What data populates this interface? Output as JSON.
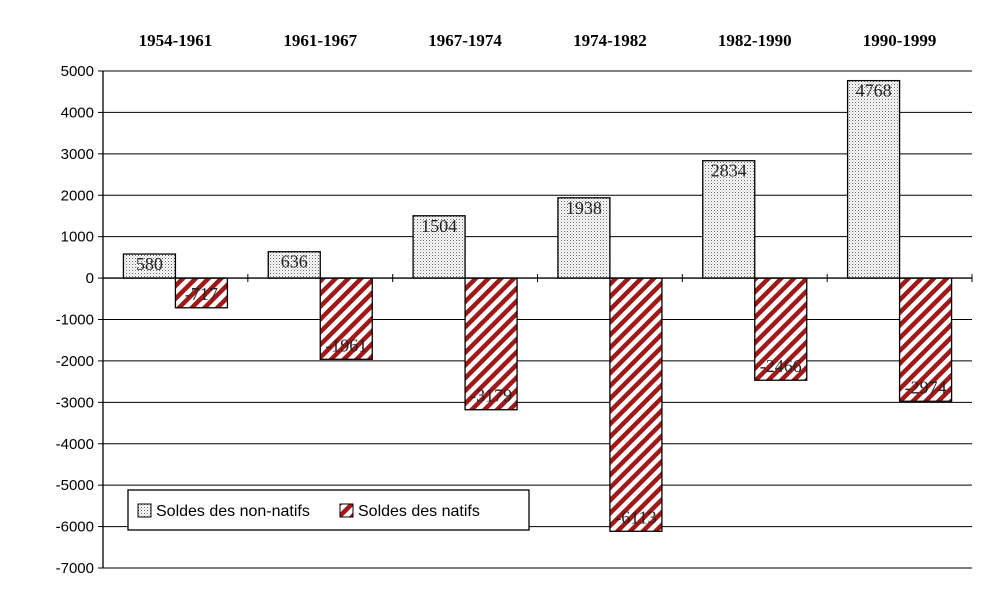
{
  "chart_data": {
    "type": "bar",
    "categories": [
      "1954-1961",
      "1961-1967",
      "1967-1974",
      "1974-1982",
      "1982-1990",
      "1990-1999"
    ],
    "series": [
      {
        "name": "Soldes des non-natifs",
        "values": [
          580,
          636,
          1504,
          1938,
          2834,
          4768
        ],
        "labels": [
          "580",
          "636",
          "1504",
          "1938",
          "2834",
          "4768"
        ],
        "color": "#ffffff",
        "pattern": "dots"
      },
      {
        "name": "Soldes des natifs",
        "values": [
          -717,
          -1961,
          -3179,
          -6113,
          -2466,
          -2974
        ],
        "labels": [
          "-717",
          "-1961",
          "-3179",
          "-6113",
          "-2466",
          "-2974"
        ],
        "color": "#a01818",
        "pattern": "diagonal-stripes"
      }
    ],
    "ylim": [
      -7000,
      5000
    ],
    "yticks": [
      "5000",
      "4000",
      "3000",
      "2000",
      "1000",
      "0",
      "-1000",
      "-2000",
      "-3000",
      "-4000",
      "-5000",
      "-6000",
      "-7000"
    ],
    "ytick_values": [
      5000,
      4000,
      3000,
      2000,
      1000,
      0,
      -1000,
      -2000,
      -3000,
      -4000,
      -5000,
      -6000,
      -7000
    ],
    "category_labels_position": "top",
    "grid": true,
    "legend_position": "bottom-left"
  }
}
